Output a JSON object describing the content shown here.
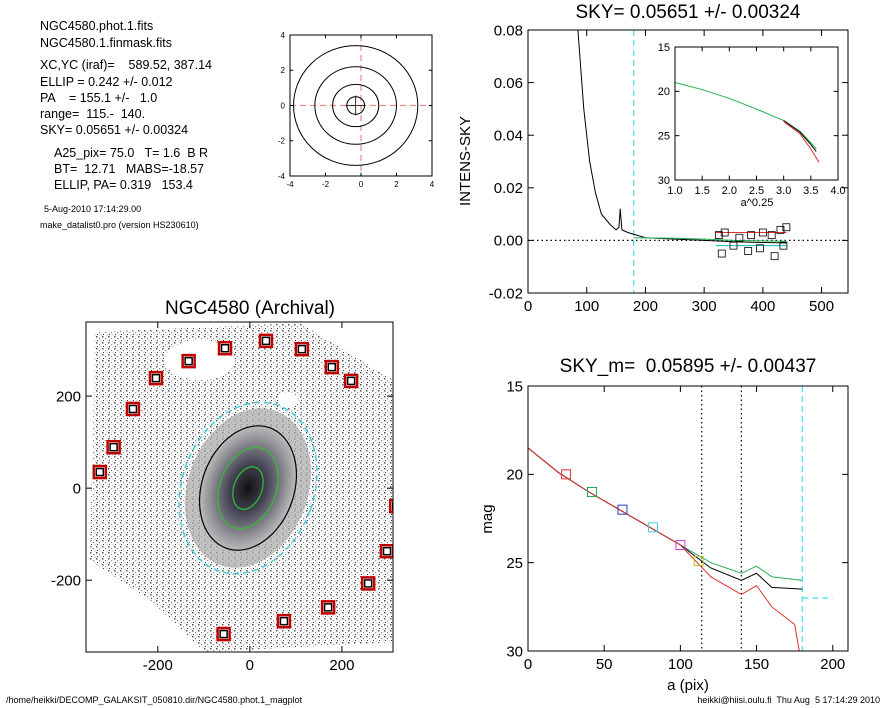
{
  "info": {
    "lines": [
      "NGC4580.phot.1.fits",
      "NGC4580.1.finmask.fits",
      "XC,YC (iraf)=    589.52, 387.14",
      "ELLIP = 0.242 +/- 0.012",
      "PA    = 155.1 +/-   1.0",
      "range=  115.-  140.",
      "SKY= 0.05651 +/- 0.00324",
      "A25_pix= 75.0   T= 1.6  B R",
      "BT=  12.71   MABS=-18.57",
      "ELLIP, PA= 0.319   153.4",
      "5-Aug-2010 17:14:29.00",
      "make_datalist0.pro (version HS230610)"
    ]
  },
  "footer": {
    "left": "/home/heikki/DECOMP_GALAKSIT_050810.dir/NGC4580.phot.1_magplot",
    "right": "heikki@hiisi.oulu.fi  Thu Aug  5 17:14:29 2010"
  },
  "chart_data": [
    {
      "type": "contour",
      "xlim": [
        -4,
        4
      ],
      "ylim": [
        -4,
        4
      ],
      "xticks": [
        -4,
        -2,
        0,
        2,
        4
      ],
      "yticks": [
        -4,
        -2,
        0,
        2,
        4
      ],
      "center": [
        -0.3,
        0
      ],
      "contours": [
        {
          "rx": 0.5,
          "ry": 0.5
        },
        {
          "rx": 1.3,
          "ry": 1.2
        },
        {
          "rx": 2.3,
          "ry": 2.2
        },
        {
          "rx": 3.5,
          "ry": 3.4
        }
      ],
      "vlines": [
        {
          "x": 0,
          "color": "#e88",
          "style": "dashed"
        }
      ],
      "hlines": [
        {
          "y": 0,
          "color": "#e88",
          "style": "dashed"
        }
      ]
    },
    {
      "type": "line",
      "title": "SKY= 0.05651 +/- 0.00324",
      "ylabel": "INTENS-SKY",
      "xlim": [
        0,
        545
      ],
      "ylim": [
        -0.02,
        0.08
      ],
      "xticks": [
        0,
        100,
        200,
        300,
        400,
        500
      ],
      "yticks": [
        -0.02,
        {
          "value": 0,
          "label": "0.00"
        },
        0.02,
        0.04,
        0.06,
        0.08
      ],
      "series": [
        {
          "color": "#000",
          "x": [
            85,
            95,
            105,
            115,
            125,
            140,
            150,
            155,
            157,
            160,
            170,
            200,
            250,
            300,
            350,
            440
          ],
          "y": [
            0.08,
            0.05,
            0.03,
            0.018,
            0.01,
            0.006,
            0.004,
            0.005,
            0.012,
            0.004,
            0.003,
            0.001,
            0.0005,
            0,
            -0.0005,
            -0.001
          ]
        },
        {
          "color": "#20b050",
          "x": [
            180,
            250,
            300,
            350,
            440
          ],
          "y": [
            0.001,
            0.0008,
            0.0005,
            0,
            -0.0003
          ]
        },
        {
          "color": "#e03030",
          "x": [
            320,
            440
          ],
          "y": [
            0.003,
            0.003
          ]
        },
        {
          "color": "#00c0c0",
          "x": [
            320,
            440
          ],
          "y": [
            -0.002,
            -0.002
          ]
        }
      ],
      "points": {
        "color": "#000",
        "x": [
          325,
          335,
          360,
          380,
          400,
          415,
          430,
          440,
          330,
          350,
          375,
          395,
          420,
          435
        ],
        "y": [
          0.002,
          0.003,
          0.001,
          0.002,
          0.003,
          0.002,
          0.004,
          0.005,
          -0.005,
          -0.002,
          -0.004,
          -0.003,
          -0.006,
          -0.002
        ]
      },
      "vlines": [
        {
          "x": 180,
          "color": "#40e0f0",
          "style": "dashed"
        }
      ],
      "hlines": [
        {
          "y": 0,
          "color": "#000",
          "style": "dotted"
        }
      ]
    },
    {
      "type": "line",
      "xlabel": "a^0.25",
      "xlim": [
        1,
        4
      ],
      "ylim": [
        30,
        15
      ],
      "xticks": [
        {
          "value": 1,
          "label": "1.0"
        },
        1.5,
        {
          "value": 2,
          "label": "2.0"
        },
        2.5,
        {
          "value": 3,
          "label": "3.0"
        },
        3.5,
        {
          "value": 4,
          "label": "4.0"
        }
      ],
      "yticks": [
        15,
        20,
        25,
        30
      ],
      "series": [
        {
          "color": "#20b050",
          "x": [
            1.0,
            1.5,
            2.0,
            2.5,
            3.0,
            3.3,
            3.5,
            3.6
          ],
          "y": [
            19,
            19.8,
            20.8,
            22,
            23.3,
            24.5,
            25.8,
            26.5
          ]
        },
        {
          "color": "#000",
          "x": [
            3.0,
            3.3,
            3.5,
            3.6
          ],
          "y": [
            23.3,
            24.6,
            26,
            26.8
          ]
        },
        {
          "color": "#e03030",
          "x": [
            3.0,
            3.3,
            3.5,
            3.65
          ],
          "y": [
            23.4,
            24.8,
            26.5,
            28
          ]
        }
      ]
    },
    {
      "type": "image",
      "title": "NGC4580 (Archival)",
      "xlim": [
        -356,
        311
      ],
      "ylim": [
        -356,
        361
      ],
      "xticks": [
        -200,
        0,
        200
      ],
      "yticks": [
        -200,
        0,
        200
      ],
      "points": {
        "color": "#c00000",
        "x": [
          -326,
          -296,
          -254,
          -204,
          -133,
          -54,
          35,
          113,
          178,
          220,
          318,
          298,
          257,
          170,
          74,
          -57
        ],
        "y": [
          35,
          89,
          172,
          239,
          276,
          304,
          320,
          302,
          263,
          233,
          -39,
          -137,
          -207,
          -259,
          -289,
          -317
        ]
      }
    },
    {
      "type": "line",
      "title": "SKY_m=  0.05895 +/- 0.00437",
      "xlabel": "a (pix)",
      "ylabel": "mag",
      "xlim": [
        0,
        210
      ],
      "ylim": [
        30,
        15
      ],
      "xticks": [
        0,
        50,
        100,
        150,
        200
      ],
      "yticks": [
        15,
        20,
        25,
        30
      ],
      "series": [
        {
          "color": "#20b050",
          "x": [
            0,
            20,
            40,
            60,
            80,
            100,
            120,
            140,
            150,
            160,
            180
          ],
          "y": [
            18.5,
            19.9,
            21,
            22,
            23,
            24,
            25,
            25.6,
            25.2,
            25.8,
            26
          ]
        },
        {
          "color": "#000",
          "x": [
            0,
            20,
            40,
            60,
            80,
            100,
            120,
            140,
            150,
            160,
            180
          ],
          "y": [
            18.5,
            19.9,
            21,
            22,
            23,
            24,
            25.3,
            26,
            25.6,
            26.4,
            26.5
          ]
        },
        {
          "color": "#e03030",
          "x": [
            0,
            20,
            40,
            60,
            80,
            100,
            120,
            140,
            150,
            160,
            175,
            178
          ],
          "y": [
            18.5,
            19.9,
            21,
            22,
            23,
            24,
            25.8,
            26.8,
            26.3,
            27.5,
            28.5,
            30
          ]
        }
      ],
      "squares": [
        {
          "color": "#e03030",
          "x": 25,
          "y": 20
        },
        {
          "color": "#20b050",
          "x": 42,
          "y": 21
        },
        {
          "color": "#2040c0",
          "x": 62,
          "y": 22
        },
        {
          "color": "#40d0e0",
          "x": 82,
          "y": 23
        },
        {
          "color": "#d040d0",
          "x": 100,
          "y": 24
        },
        {
          "color": "#c0c030",
          "x": 112,
          "y": 24.9
        }
      ],
      "vlines": [
        {
          "x": 114,
          "color": "#000",
          "style": "dotted"
        },
        {
          "x": 140,
          "color": "#000",
          "style": "dotted"
        },
        {
          "x": 180,
          "color": "#40e0f0",
          "style": "dashed"
        }
      ],
      "hlines": [
        {
          "y": 27,
          "x0": 180,
          "x1": 200,
          "color": "#40e0f0",
          "style": "dashed"
        }
      ]
    }
  ]
}
